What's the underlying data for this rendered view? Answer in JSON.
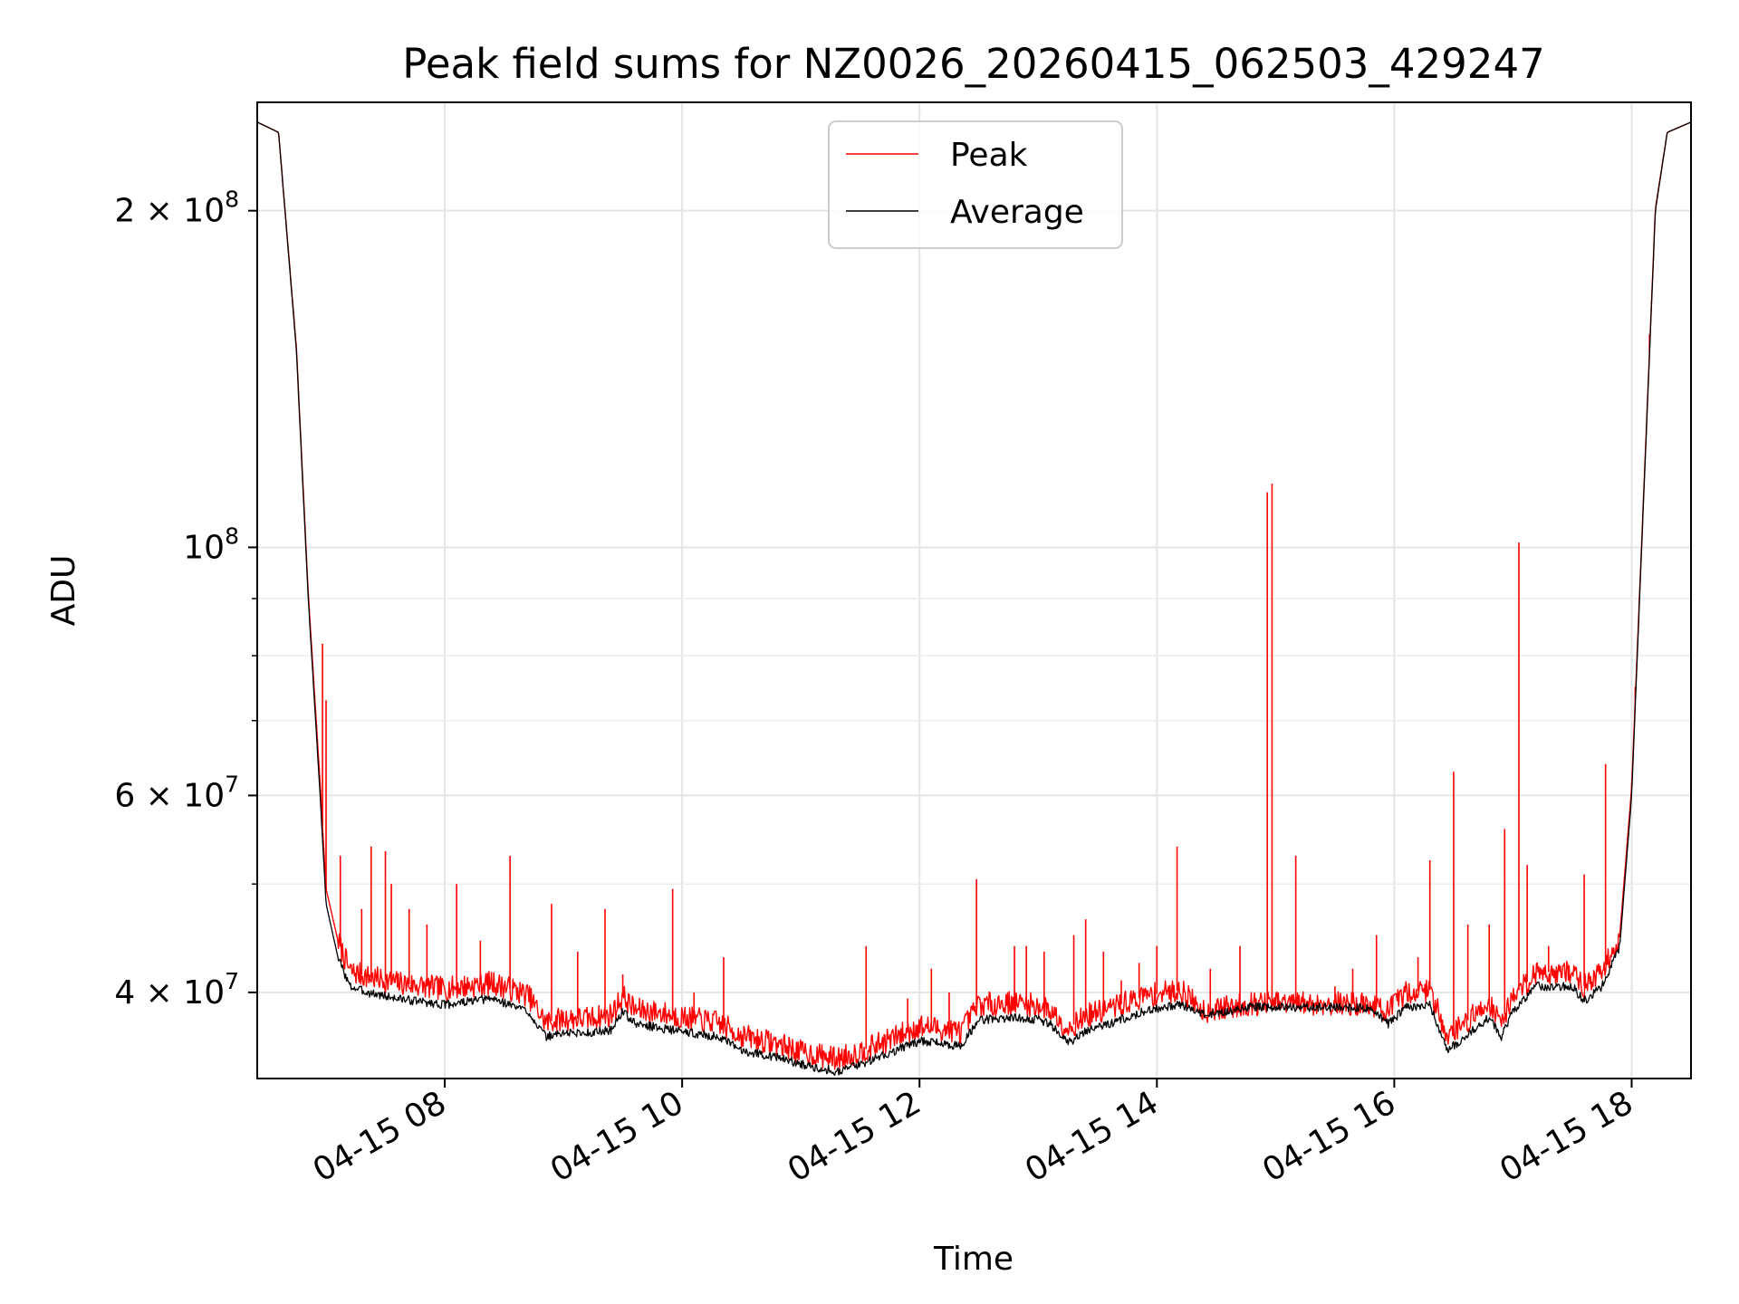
{
  "chart_data": {
    "type": "line",
    "title": "Peak field sums for NZ0026_20260415_062503_429247",
    "xlabel": "Time",
    "ylabel": "ADU",
    "yscale": "log",
    "grid": true,
    "x_unit": "hours",
    "xlim": [
      6.42,
      18.5
    ],
    "ylim": [
      33500000,
      250000000
    ],
    "x_ticks": [
      {
        "value": 8,
        "label": "04-15 08"
      },
      {
        "value": 10,
        "label": "04-15 10"
      },
      {
        "value": 12,
        "label": "04-15 12"
      },
      {
        "value": 14,
        "label": "04-15 14"
      },
      {
        "value": 16,
        "label": "04-15 16"
      },
      {
        "value": 18,
        "label": "04-15 18"
      }
    ],
    "y_ticks": [
      {
        "value": 40000000,
        "label": "4 × 10",
        "exp": "7"
      },
      {
        "value": 60000000,
        "label": "6 × 10",
        "exp": "7"
      },
      {
        "value": 100000000,
        "label": "10",
        "exp": "8"
      },
      {
        "value": 200000000,
        "label": "2 × 10",
        "exp": "8"
      }
    ],
    "y_minor_ticks": [
      50000000,
      70000000,
      80000000,
      90000000
    ],
    "legend": {
      "location": "top-center",
      "entries": [
        {
          "name": "Peak",
          "color": "#ff0000"
        },
        {
          "name": "Average",
          "color": "#000000"
        }
      ]
    },
    "series": [
      {
        "name": "Average",
        "color": "#000000",
        "x": [
          6.42,
          6.6,
          6.75,
          6.85,
          6.95,
          7.0,
          7.1,
          7.2,
          7.35,
          7.6,
          8.0,
          8.4,
          8.7,
          8.85,
          9.0,
          9.2,
          9.4,
          9.5,
          9.6,
          9.8,
          10.0,
          10.3,
          10.5,
          10.8,
          11.0,
          11.3,
          11.5,
          11.8,
          12.0,
          12.2,
          12.35,
          12.5,
          12.8,
          13.0,
          13.1,
          13.25,
          13.4,
          13.6,
          13.9,
          14.2,
          14.4,
          14.8,
          15.2,
          15.6,
          15.8,
          15.95,
          16.1,
          16.3,
          16.45,
          16.6,
          16.8,
          16.9,
          17.0,
          17.2,
          17.4,
          17.5,
          17.6,
          17.75,
          17.9,
          18.0,
          18.1,
          18.2,
          18.3,
          18.5
        ],
        "values": [
          240000000,
          235000000,
          150000000,
          90000000,
          60000000,
          48000000,
          43000000,
          40500000,
          40000000,
          39500000,
          39000000,
          39500000,
          38500000,
          36500000,
          36800000,
          36800000,
          37000000,
          38500000,
          37500000,
          37200000,
          36900000,
          36500000,
          35500000,
          35000000,
          34500000,
          34000000,
          34500000,
          35500000,
          36200000,
          36000000,
          35800000,
          37800000,
          38000000,
          37800000,
          37500000,
          36000000,
          37000000,
          37500000,
          38500000,
          39000000,
          38200000,
          38800000,
          38800000,
          38800000,
          38700000,
          37500000,
          38800000,
          39000000,
          35500000,
          36500000,
          38000000,
          36500000,
          38500000,
          40500000,
          40500000,
          40500000,
          39300000,
          40500000,
          44000000,
          60000000,
          110000000,
          200000000,
          235000000,
          240000000
        ]
      },
      {
        "name": "Peak",
        "color": "#ff0000",
        "x": [
          6.42,
          6.6,
          6.75,
          6.85,
          6.95,
          7.0,
          7.1,
          7.2,
          7.35,
          7.6,
          8.0,
          8.4,
          8.7,
          8.85,
          9.0,
          9.2,
          9.4,
          9.5,
          9.6,
          9.8,
          10.0,
          10.3,
          10.5,
          10.8,
          11.0,
          11.3,
          11.5,
          11.8,
          12.0,
          12.2,
          12.35,
          12.5,
          12.8,
          13.0,
          13.1,
          13.25,
          13.4,
          13.6,
          13.9,
          14.2,
          14.4,
          14.8,
          15.2,
          15.6,
          15.8,
          15.95,
          16.1,
          16.3,
          16.45,
          16.6,
          16.8,
          16.9,
          17.0,
          17.2,
          17.4,
          17.5,
          17.6,
          17.75,
          17.9,
          18.0,
          18.1,
          18.2,
          18.3,
          18.5
        ],
        "values": [
          240000000,
          235000000,
          151000000,
          91000000,
          61500000,
          49500000,
          44500000,
          41800000,
          41300000,
          40800000,
          40300000,
          40800000,
          39800000,
          37600000,
          37900000,
          37900000,
          38200000,
          39700000,
          38600000,
          38400000,
          38000000,
          37600000,
          36600000,
          36000000,
          35400000,
          34900000,
          35400000,
          36500000,
          37300000,
          37100000,
          36900000,
          39000000,
          39200000,
          38900000,
          38600000,
          37100000,
          38100000,
          38700000,
          39700000,
          40200000,
          38500000,
          39100000,
          39100000,
          39100000,
          39000000,
          38500000,
          40000000,
          40200000,
          36600000,
          37600000,
          39200000,
          37600000,
          39700000,
          41700000,
          41700000,
          41700000,
          40500000,
          41700000,
          45000000,
          61000000,
          111000000,
          201000000,
          235000000,
          240000000
        ],
        "spikes": [
          {
            "x": 6.97,
            "y": 82000000
          },
          {
            "x": 7.0,
            "y": 73000000
          },
          {
            "x": 7.12,
            "y": 53000000
          },
          {
            "x": 7.3,
            "y": 47500000
          },
          {
            "x": 7.38,
            "y": 54000000
          },
          {
            "x": 7.5,
            "y": 53500000
          },
          {
            "x": 7.55,
            "y": 50000000
          },
          {
            "x": 7.7,
            "y": 47500000
          },
          {
            "x": 7.85,
            "y": 46000000
          },
          {
            "x": 8.1,
            "y": 50000000
          },
          {
            "x": 8.3,
            "y": 44500000
          },
          {
            "x": 8.55,
            "y": 53000000
          },
          {
            "x": 8.9,
            "y": 48000000
          },
          {
            "x": 9.12,
            "y": 43500000
          },
          {
            "x": 9.35,
            "y": 47500000
          },
          {
            "x": 9.5,
            "y": 41500000
          },
          {
            "x": 9.92,
            "y": 49500000
          },
          {
            "x": 10.1,
            "y": 40000000
          },
          {
            "x": 10.35,
            "y": 43000000
          },
          {
            "x": 10.9,
            "y": 36500000
          },
          {
            "x": 11.55,
            "y": 44000000
          },
          {
            "x": 11.9,
            "y": 39500000
          },
          {
            "x": 12.1,
            "y": 42000000
          },
          {
            "x": 12.25,
            "y": 40000000
          },
          {
            "x": 12.48,
            "y": 50500000
          },
          {
            "x": 12.8,
            "y": 44000000
          },
          {
            "x": 12.9,
            "y": 44000000
          },
          {
            "x": 13.05,
            "y": 43500000
          },
          {
            "x": 13.3,
            "y": 45000000
          },
          {
            "x": 13.4,
            "y": 46500000
          },
          {
            "x": 13.55,
            "y": 43500000
          },
          {
            "x": 13.7,
            "y": 41000000
          },
          {
            "x": 13.85,
            "y": 42500000
          },
          {
            "x": 14.0,
            "y": 44000000
          },
          {
            "x": 14.17,
            "y": 54000000
          },
          {
            "x": 14.45,
            "y": 42000000
          },
          {
            "x": 14.7,
            "y": 44000000
          },
          {
            "x": 14.93,
            "y": 112000000
          },
          {
            "x": 14.97,
            "y": 114000000
          },
          {
            "x": 15.17,
            "y": 53000000
          },
          {
            "x": 15.5,
            "y": 40500000
          },
          {
            "x": 15.65,
            "y": 42000000
          },
          {
            "x": 15.85,
            "y": 45000000
          },
          {
            "x": 16.2,
            "y": 43000000
          },
          {
            "x": 16.3,
            "y": 52500000
          },
          {
            "x": 16.5,
            "y": 63000000
          },
          {
            "x": 16.62,
            "y": 46000000
          },
          {
            "x": 16.8,
            "y": 46000000
          },
          {
            "x": 16.93,
            "y": 56000000
          },
          {
            "x": 17.05,
            "y": 101000000
          },
          {
            "x": 17.12,
            "y": 52000000
          },
          {
            "x": 17.3,
            "y": 44000000
          },
          {
            "x": 17.6,
            "y": 51000000
          },
          {
            "x": 17.78,
            "y": 64000000
          },
          {
            "x": 18.03,
            "y": 75000000
          },
          {
            "x": 18.15,
            "y": 155000000
          }
        ]
      }
    ]
  }
}
